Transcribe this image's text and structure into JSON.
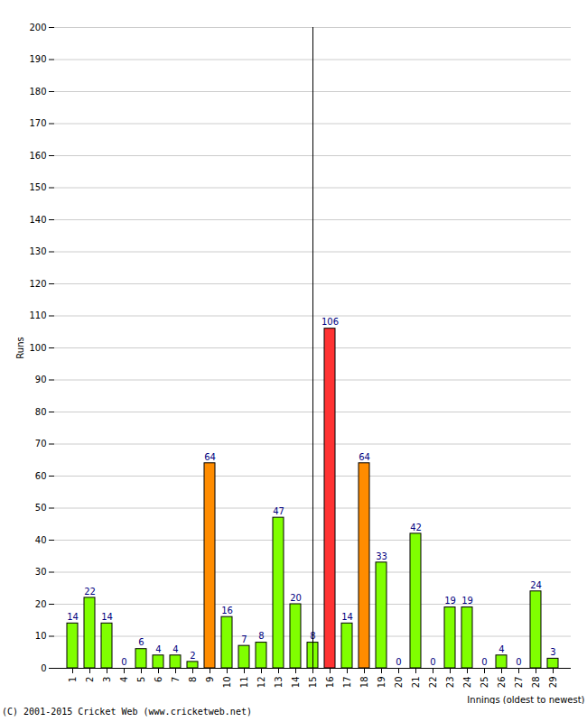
{
  "chart_data": {
    "type": "bar",
    "caption": "(C) 2001-2015 Cricket Web (www.cricketweb.net)",
    "x_label": "Innings (oldest to newest)",
    "y_label": "Runs",
    "categories": [
      "1",
      "2",
      "3",
      "4",
      "5",
      "6",
      "7",
      "8",
      "9",
      "10",
      "11",
      "12",
      "13",
      "14",
      "15",
      "16",
      "17",
      "18",
      "19",
      "20",
      "21",
      "22",
      "23",
      "24",
      "25",
      "26",
      "27",
      "28",
      "29"
    ],
    "values": [
      14,
      22,
      14,
      0,
      6,
      4,
      4,
      2,
      64,
      16,
      7,
      8,
      47,
      20,
      8,
      106,
      14,
      64,
      33,
      0,
      42,
      0,
      19,
      19,
      0,
      4,
      0,
      24,
      3
    ],
    "colors": [
      "#80ff00",
      "#80ff00",
      "#80ff00",
      "#80ff00",
      "#80ff00",
      "#80ff00",
      "#80ff00",
      "#80ff00",
      "#ff8c00",
      "#80ff00",
      "#80ff00",
      "#80ff00",
      "#80ff00",
      "#80ff00",
      "#80ff00",
      "#ff3333",
      "#80ff00",
      "#ff8c00",
      "#80ff00",
      "#80ff00",
      "#80ff00",
      "#80ff00",
      "#80ff00",
      "#80ff00",
      "#80ff00",
      "#80ff00",
      "#80ff00",
      "#80ff00",
      "#80ff00"
    ],
    "ylim": [
      0,
      200
    ],
    "yticks": [
      0,
      10,
      20,
      30,
      40,
      50,
      60,
      70,
      80,
      90,
      100,
      110,
      120,
      130,
      140,
      150,
      160,
      170,
      180,
      190,
      200
    ],
    "grid": true,
    "data_labels": true
  }
}
